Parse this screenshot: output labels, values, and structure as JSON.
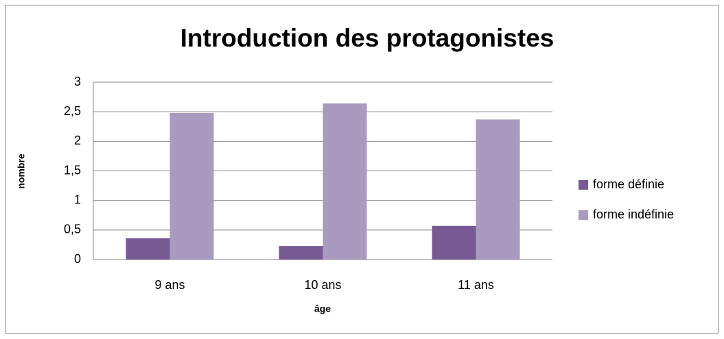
{
  "chart_data": {
    "type": "bar",
    "title": "Introduction des protagonistes",
    "y_label": "nombre",
    "x_label": "âge",
    "categories": [
      "9 ans",
      "10 ans",
      "11 ans"
    ],
    "series": [
      {
        "name": "forme définie",
        "color": "#775a94",
        "values": [
          0.36,
          0.23,
          0.57
        ]
      },
      {
        "name": "forme indéfinie",
        "color": "#a99bc0",
        "values": [
          2.48,
          2.64,
          2.37
        ]
      }
    ],
    "ylim": [
      0,
      3
    ],
    "yticks": [
      0,
      {
        "value": 0.5,
        "label": "0,5"
      },
      1,
      {
        "value": 1.5,
        "label": "1,5"
      },
      2,
      {
        "value": 2.5,
        "label": "2,5"
      },
      3
    ],
    "grid": true,
    "legend": "right"
  }
}
